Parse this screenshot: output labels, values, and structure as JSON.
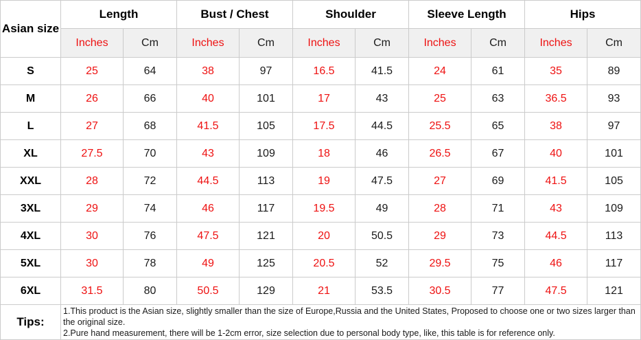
{
  "table": {
    "corner_header": "Asian size",
    "groups": [
      "Length",
      "Bust / Chest",
      "Shoulder",
      "Sleeve Length",
      "Hips"
    ],
    "unit_inches": "Inches",
    "unit_cm": "Cm",
    "rows": [
      {
        "size": "S",
        "values": [
          "25",
          "64",
          "38",
          "97",
          "16.5",
          "41.5",
          "24",
          "61",
          "35",
          "89"
        ]
      },
      {
        "size": "M",
        "values": [
          "26",
          "66",
          "40",
          "101",
          "17",
          "43",
          "25",
          "63",
          "36.5",
          "93"
        ]
      },
      {
        "size": "L",
        "values": [
          "27",
          "68",
          "41.5",
          "105",
          "17.5",
          "44.5",
          "25.5",
          "65",
          "38",
          "97"
        ]
      },
      {
        "size": "XL",
        "values": [
          "27.5",
          "70",
          "43",
          "109",
          "18",
          "46",
          "26.5",
          "67",
          "40",
          "101"
        ]
      },
      {
        "size": "XXL",
        "values": [
          "28",
          "72",
          "44.5",
          "113",
          "19",
          "47.5",
          "27",
          "69",
          "41.5",
          "105"
        ]
      },
      {
        "size": "3XL",
        "values": [
          "29",
          "74",
          "46",
          "117",
          "19.5",
          "49",
          "28",
          "71",
          "43",
          "109"
        ]
      },
      {
        "size": "4XL",
        "values": [
          "30",
          "76",
          "47.5",
          "121",
          "20",
          "50.5",
          "29",
          "73",
          "44.5",
          "113"
        ]
      },
      {
        "size": "5XL",
        "values": [
          "30",
          "78",
          "49",
          "125",
          "20.5",
          "52",
          "29.5",
          "75",
          "46",
          "117"
        ]
      },
      {
        "size": "6XL",
        "values": [
          "31.5",
          "80",
          "50.5",
          "129",
          "21",
          "53.5",
          "30.5",
          "77",
          "47.5",
          "121"
        ]
      }
    ],
    "tips": {
      "label": "Tips:",
      "lines": [
        "1.This product is the Asian size, slightly smaller than the size of Europe,Russia and the United States, Proposed to choose one or two sizes larger than the original size.",
        "2.Pure hand measurement, there will be 1-2cm error, size selection due to personal body type, like, this table is for reference only."
      ]
    }
  },
  "colors": {
    "accent_red": "#ee1111",
    "subheader_bg": "#f0f0f0",
    "border": "#cbcbcb"
  }
}
